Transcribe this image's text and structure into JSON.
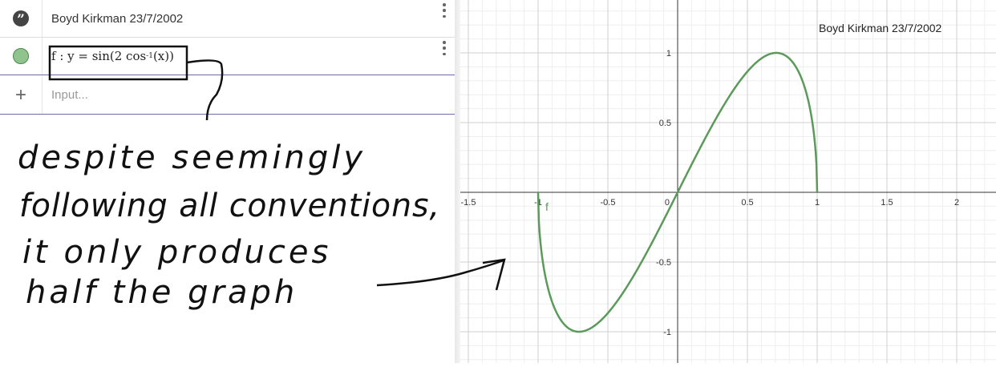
{
  "algebra": {
    "rows": [
      {
        "text": "Boyd Kirkman 23/7/2002",
        "marker_icon": "quote-icon"
      },
      {
        "formula_prefix": "f : y = sin(2  cos",
        "formula_sup": "-1",
        "formula_suffix": "(x))",
        "marker_icon": "circle-icon",
        "color": "#4f9a4f"
      }
    ],
    "input": {
      "placeholder": "Input..."
    }
  },
  "graphics": {
    "text_label": "Boyd Kirkman 23/7/2002",
    "curve_label": "f",
    "curve_color": "#5b9a5b",
    "x_ticks": [
      "-1.5",
      "-1",
      "-0.5",
      "0",
      "0.5",
      "1",
      "1.5",
      "2"
    ],
    "y_ticks": [
      "1",
      "0.5",
      "-0.5",
      "-1"
    ]
  },
  "handwriting": {
    "line1": "despite seemingly",
    "line2": "following all conventions,",
    "line3": "it only produces",
    "line4": "half the graph"
  }
}
